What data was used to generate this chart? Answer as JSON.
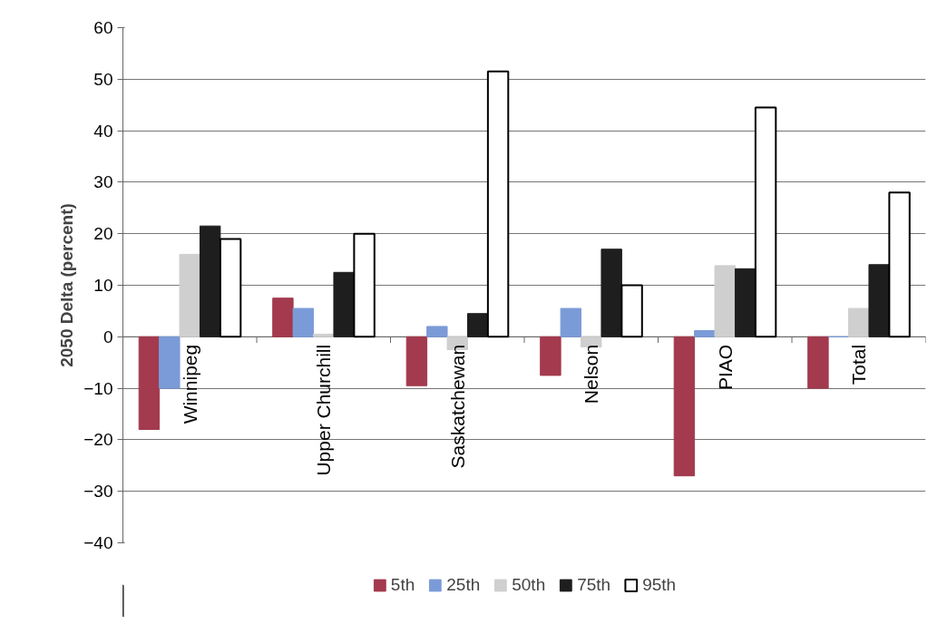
{
  "chart_data": {
    "type": "bar",
    "ylabel": "2050 Delta (percent)",
    "categories": [
      "Winnipeg",
      "Upper Churchill",
      "Saskatchewan",
      "Nelson",
      "PIAO",
      "Total"
    ],
    "series": [
      {
        "name": "5th",
        "color": "#a33a4e",
        "values": [
          -18,
          7.5,
          -9.5,
          -7.5,
          -27,
          -10
        ]
      },
      {
        "name": "25th",
        "color": "#7b9bd8",
        "values": [
          -10,
          5.5,
          2,
          5.5,
          1.2,
          0
        ]
      },
      {
        "name": "50th",
        "color": "#cfcfcf",
        "values": [
          16,
          0.5,
          -2.5,
          -2,
          13.8,
          5.5
        ]
      },
      {
        "name": "75th",
        "color": "#1e1e1e",
        "values": [
          21.5,
          12.5,
          4.5,
          17,
          13.2,
          14
        ]
      },
      {
        "name": "95th",
        "color": "#ffffff",
        "values": [
          19,
          20,
          51.5,
          10,
          44.5,
          28
        ]
      }
    ],
    "ylim": [
      -40,
      60
    ],
    "yticks": [
      -40,
      -30,
      -20,
      -10,
      0,
      10,
      20,
      30,
      40,
      50,
      60
    ],
    "grid": "y",
    "legend": "bottom"
  }
}
